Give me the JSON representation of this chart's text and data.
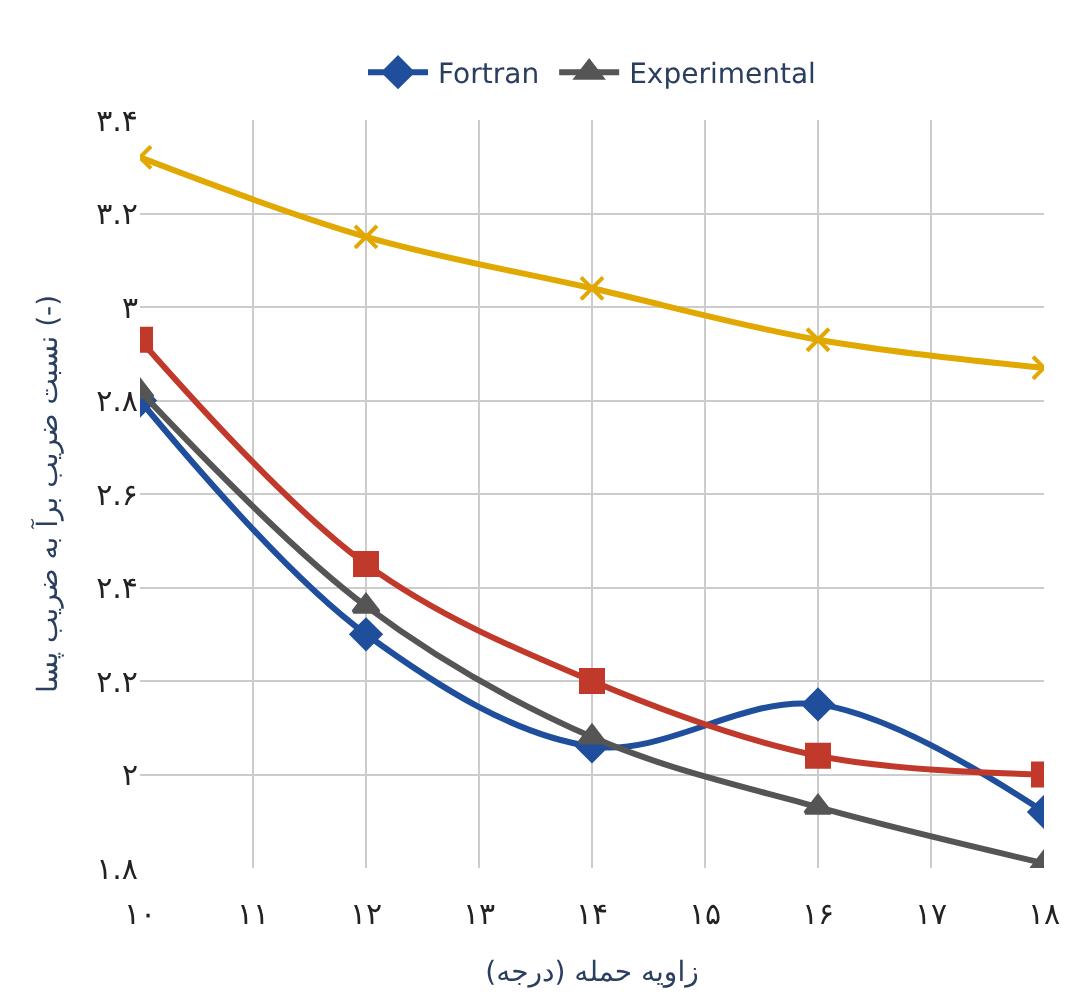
{
  "chart_data": {
    "type": "line",
    "xlabel": "زاویه حمله (درجه)",
    "ylabel": "نسبت ضریب برآ به ضریب پسا (-)",
    "x": [
      10,
      12,
      14,
      16,
      18
    ],
    "series": [
      {
        "name": "Fortran",
        "color": "#1f4e9c",
        "marker": "diamond",
        "values": [
          2.8,
          2.3,
          2.06,
          2.15,
          1.92
        ]
      },
      {
        "color": "#c0392b",
        "marker": "square",
        "values": [
          2.93,
          2.45,
          2.2,
          2.04,
          2.0
        ]
      },
      {
        "name": "Experimental",
        "color": "#555555",
        "marker": "triangle",
        "values": [
          2.82,
          2.36,
          2.08,
          1.93,
          1.81
        ]
      },
      {
        "color": "#e0a800",
        "marker": "cross",
        "values": [
          3.32,
          3.15,
          3.04,
          2.93,
          2.87
        ]
      }
    ],
    "xlim": [
      10,
      18
    ],
    "xticks": [
      {
        "value": 10,
        "label": "۱۰"
      },
      {
        "value": 11,
        "label": "۱۱"
      },
      {
        "value": 12,
        "label": "۱۲"
      },
      {
        "value": 13,
        "label": "۱۳"
      },
      {
        "value": 14,
        "label": "۱۴"
      },
      {
        "value": 15,
        "label": "۱۵"
      },
      {
        "value": 16,
        "label": "۱۶"
      },
      {
        "value": 17,
        "label": "۱۷"
      },
      {
        "value": 18,
        "label": "۱۸"
      }
    ],
    "ylim": [
      1.8,
      3.4
    ],
    "yticks": [
      {
        "value": 1.8,
        "label": "۱.۸"
      },
      {
        "value": 2,
        "label": "۲"
      },
      {
        "value": 2.2,
        "label": "۲.۲"
      },
      {
        "value": 2.4,
        "label": "۲.۴"
      },
      {
        "value": 2.6,
        "label": "۲.۶"
      },
      {
        "value": 2.8,
        "label": "۲.۸"
      },
      {
        "value": 3,
        "label": "۳"
      },
      {
        "value": 3.2,
        "label": "۳.۲"
      },
      {
        "value": 3.4,
        "label": "۳.۴"
      }
    ],
    "grid": true,
    "legend": "top",
    "line_style": "solid"
  }
}
